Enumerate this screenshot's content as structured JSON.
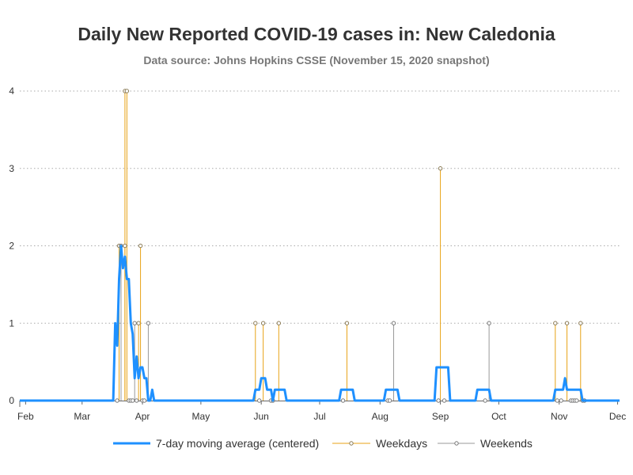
{
  "title": "Daily New Reported COVID-19 cases in: New Caledonia",
  "subtitle": "Data source: Johns Hopkins CSSE (November 15, 2020 snapshot)",
  "colors": {
    "moving_average": "#1e90ff",
    "weekdays": "#e8a317",
    "weekends": "#999999",
    "grid": "#aaaaaa",
    "axis": "#666666"
  },
  "chart_data": {
    "type": "line",
    "title": "Daily New Reported COVID-19 cases in: New Caledonia",
    "subtitle": "Data source: Johns Hopkins CSSE (November 15, 2020 snapshot)",
    "xlabel": "",
    "ylabel": "",
    "x_range": [
      "2020-01-29",
      "2020-12-02"
    ],
    "ylim": [
      0,
      4
    ],
    "y_ticks": [
      0,
      1,
      2,
      3,
      4
    ],
    "x_ticks": [
      {
        "date": "2020-02-01",
        "label": "Feb"
      },
      {
        "date": "2020-03-01",
        "label": "Mar"
      },
      {
        "date": "2020-04-01",
        "label": "Apr"
      },
      {
        "date": "2020-05-01",
        "label": "May"
      },
      {
        "date": "2020-06-01",
        "label": "Jun"
      },
      {
        "date": "2020-07-01",
        "label": "Jul"
      },
      {
        "date": "2020-08-01",
        "label": "Aug"
      },
      {
        "date": "2020-09-01",
        "label": "Sep"
      },
      {
        "date": "2020-10-01",
        "label": "Oct"
      },
      {
        "date": "2020-11-01",
        "label": "Nov"
      },
      {
        "date": "2020-12-01",
        "label": "Dec"
      }
    ],
    "grid": "horizontal dotted",
    "legend_position": "bottom",
    "series": [
      {
        "name": "7-day moving average (centered)",
        "style": "line",
        "points": [
          [
            "2020-01-29",
            0
          ],
          [
            "2020-03-17",
            0
          ],
          [
            "2020-03-18",
            1.0
          ],
          [
            "2020-03-19",
            0.71
          ],
          [
            "2020-03-20",
            1.57
          ],
          [
            "2020-03-21",
            2.0
          ],
          [
            "2020-03-22",
            1.71
          ],
          [
            "2020-03-23",
            1.86
          ],
          [
            "2020-03-24",
            1.57
          ],
          [
            "2020-03-25",
            1.57
          ],
          [
            "2020-03-26",
            1.0
          ],
          [
            "2020-03-27",
            0.86
          ],
          [
            "2020-03-28",
            0.29
          ],
          [
            "2020-03-29",
            0.57
          ],
          [
            "2020-03-30",
            0.29
          ],
          [
            "2020-03-31",
            0.43
          ],
          [
            "2020-04-01",
            0.43
          ],
          [
            "2020-04-02",
            0.29
          ],
          [
            "2020-04-03",
            0.29
          ],
          [
            "2020-04-04",
            0.0
          ],
          [
            "2020-04-05",
            0.0
          ],
          [
            "2020-04-06",
            0.14
          ],
          [
            "2020-04-07",
            0.0
          ],
          [
            "2020-05-28",
            0.0
          ],
          [
            "2020-05-29",
            0.14
          ],
          [
            "2020-05-31",
            0.14
          ],
          [
            "2020-06-01",
            0.29
          ],
          [
            "2020-06-03",
            0.29
          ],
          [
            "2020-06-04",
            0.14
          ],
          [
            "2020-06-06",
            0.14
          ],
          [
            "2020-06-07",
            0.0
          ],
          [
            "2020-06-08",
            0.14
          ],
          [
            "2020-06-13",
            0.14
          ],
          [
            "2020-06-14",
            0.0
          ],
          [
            "2020-07-11",
            0.0
          ],
          [
            "2020-07-12",
            0.14
          ],
          [
            "2020-07-18",
            0.14
          ],
          [
            "2020-07-19",
            0.0
          ],
          [
            "2020-08-03",
            0.0
          ],
          [
            "2020-08-04",
            0.14
          ],
          [
            "2020-08-10",
            0.14
          ],
          [
            "2020-08-11",
            0.0
          ],
          [
            "2020-08-29",
            0.0
          ],
          [
            "2020-08-30",
            0.43
          ],
          [
            "2020-09-05",
            0.43
          ],
          [
            "2020-09-06",
            0.0
          ],
          [
            "2020-09-19",
            0.0
          ],
          [
            "2020-09-20",
            0.14
          ],
          [
            "2020-09-26",
            0.14
          ],
          [
            "2020-09-27",
            0.0
          ],
          [
            "2020-10-29",
            0.0
          ],
          [
            "2020-10-30",
            0.14
          ],
          [
            "2020-11-03",
            0.14
          ],
          [
            "2020-11-04",
            0.29
          ],
          [
            "2020-11-05",
            0.14
          ],
          [
            "2020-11-12",
            0.14
          ],
          [
            "2020-11-13",
            0.0
          ],
          [
            "2020-12-02",
            0.0
          ]
        ]
      },
      {
        "name": "Weekdays",
        "style": "needle",
        "points": [
          [
            "2020-03-23",
            4
          ],
          [
            "2020-03-24",
            4
          ],
          [
            "2020-03-20",
            2
          ],
          [
            "2020-03-23",
            2
          ],
          [
            "2020-03-30",
            1
          ],
          [
            "2020-03-31",
            2
          ],
          [
            "2020-05-29",
            1
          ],
          [
            "2020-06-02",
            1
          ],
          [
            "2020-06-10",
            1
          ],
          [
            "2020-07-15",
            1
          ],
          [
            "2020-09-01",
            3
          ],
          [
            "2020-10-30",
            1
          ],
          [
            "2020-11-05",
            1
          ],
          [
            "2020-11-12",
            1
          ]
        ]
      },
      {
        "name": "Weekends",
        "style": "needle",
        "points": [
          [
            "2020-03-21",
            2
          ],
          [
            "2020-03-28",
            1
          ],
          [
            "2020-04-04",
            1
          ],
          [
            "2020-08-08",
            1
          ],
          [
            "2020-09-26",
            1
          ]
        ]
      }
    ]
  },
  "legend": {
    "items": [
      {
        "label": "7-day moving average (centered)"
      },
      {
        "label": "Weekdays"
      },
      {
        "label": "Weekends"
      }
    ]
  }
}
